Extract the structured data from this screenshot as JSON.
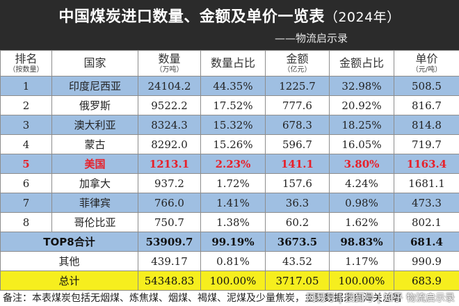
{
  "header": {
    "title": "中国煤炭进口数量、金额及单价一览表",
    "year": "（2024年）",
    "subtitle": "——物流启示录"
  },
  "table": {
    "columns": [
      {
        "label": "排名",
        "sub": "（按数量）"
      },
      {
        "label": "国家",
        "sub": ""
      },
      {
        "label": "数量",
        "sub": "（万吨）"
      },
      {
        "label": "数量占比",
        "sub": ""
      },
      {
        "label": "金额",
        "sub": "（亿元）"
      },
      {
        "label": "金额占比",
        "sub": ""
      },
      {
        "label": "单价",
        "sub": "（元/吨）"
      }
    ],
    "rows": [
      {
        "rank": "1",
        "country": "印度尼西亚",
        "qty": "24104.2",
        "qty_pct": "44.35%",
        "amount": "1225.7",
        "amount_pct": "32.98%",
        "price": "508.5"
      },
      {
        "rank": "2",
        "country": "俄罗斯",
        "qty": "9522.2",
        "qty_pct": "17.52%",
        "amount": "777.6",
        "amount_pct": "20.92%",
        "price": "816.7"
      },
      {
        "rank": "3",
        "country": "澳大利亚",
        "qty": "8324.3",
        "qty_pct": "15.32%",
        "amount": "678.3",
        "amount_pct": "18.25%",
        "price": "814.8"
      },
      {
        "rank": "4",
        "country": "蒙古",
        "qty": "8292.0",
        "qty_pct": "15.26%",
        "amount": "596.7",
        "amount_pct": "16.05%",
        "price": "719.7"
      },
      {
        "rank": "5",
        "country": "美国",
        "qty": "1213.1",
        "qty_pct": "2.23%",
        "amount": "141.1",
        "amount_pct": "3.80%",
        "price": "1163.4"
      },
      {
        "rank": "6",
        "country": "加拿大",
        "qty": "937.2",
        "qty_pct": "1.72%",
        "amount": "157.6",
        "amount_pct": "4.24%",
        "price": "1681.1"
      },
      {
        "rank": "7",
        "country": "菲律宾",
        "qty": "766.0",
        "qty_pct": "1.41%",
        "amount": "36.3",
        "amount_pct": "0.98%",
        "price": "473.3"
      },
      {
        "rank": "8",
        "country": "哥伦比亚",
        "qty": "750.7",
        "qty_pct": "1.38%",
        "amount": "60.2",
        "amount_pct": "1.62%",
        "price": "802.1"
      }
    ],
    "top8": {
      "label": "TOP8合计",
      "qty": "53909.7",
      "qty_pct": "99.19%",
      "amount": "3673.5",
      "amount_pct": "98.83%",
      "price": "681.4"
    },
    "other": {
      "label": "其他",
      "qty": "439.17",
      "qty_pct": "0.81%",
      "amount": "43.52",
      "amount_pct": "1.17%",
      "price": "990.9"
    },
    "total": {
      "label": "总计",
      "qty": "54348.83",
      "qty_pct": "100.00%",
      "amount": "3717.05",
      "amount_pct": "100.00%",
      "price": "683.9"
    }
  },
  "footnote": "备注：本表煤炭包括无烟煤、炼焦煤、烟煤、褐煤、泥煤及少量焦炭，主要数据来自海关总署",
  "watermark": "网易号 | 搜狐号 | 知乎 物流启示录"
}
